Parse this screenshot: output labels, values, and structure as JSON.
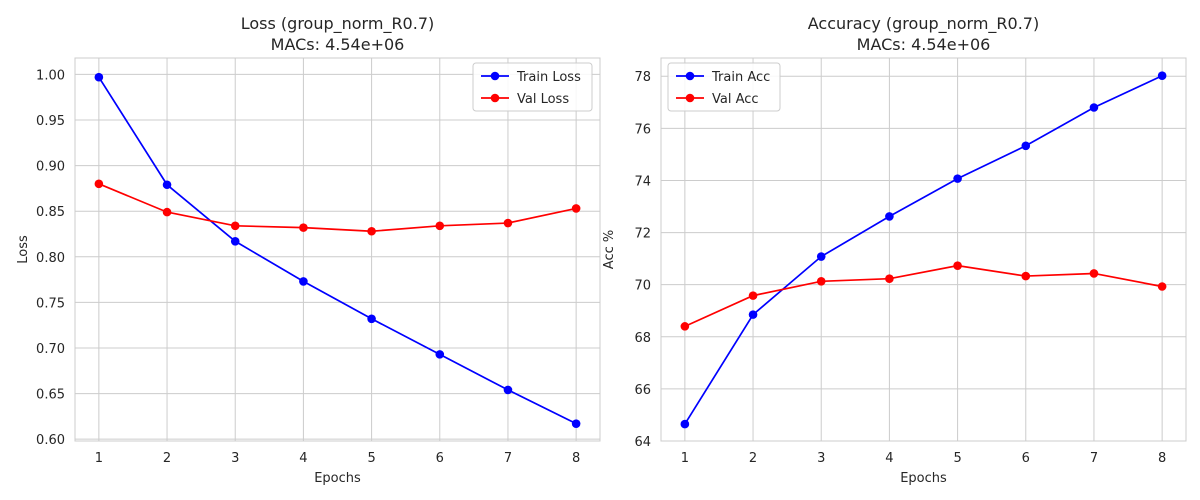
{
  "colors": {
    "train": "#0000ff",
    "val": "#ff0000",
    "grid": "#cccccc",
    "text": "#262626"
  },
  "chart_data": [
    {
      "type": "line",
      "title": "Loss (group_norm_R0.7)",
      "subtitle": "MACs: 4.54e+06",
      "xlabel": "Epochs",
      "ylabel": "Loss",
      "x": [
        1,
        2,
        3,
        4,
        5,
        6,
        7,
        8
      ],
      "ylim": [
        0.598,
        1.018
      ],
      "yticks": [
        0.6,
        0.65,
        0.7,
        0.75,
        0.8,
        0.85,
        0.9,
        0.95,
        1.0
      ],
      "ytick_labels": [
        "0.60",
        "0.65",
        "0.70",
        "0.75",
        "0.80",
        "0.85",
        "0.90",
        "0.95",
        "1.00"
      ],
      "xticks": [
        1,
        2,
        3,
        4,
        5,
        6,
        7,
        8
      ],
      "xtick_labels": [
        "1",
        "2",
        "3",
        "4",
        "5",
        "6",
        "7",
        "8"
      ],
      "grid": true,
      "legend": "upper-right",
      "series": [
        {
          "name": "Train Loss",
          "color": "#0000ff",
          "values": [
            0.997,
            0.879,
            0.817,
            0.773,
            0.732,
            0.693,
            0.654,
            0.617
          ]
        },
        {
          "name": "Val Loss",
          "color": "#ff0000",
          "values": [
            0.88,
            0.849,
            0.834,
            0.832,
            0.828,
            0.834,
            0.837,
            0.853
          ]
        }
      ]
    },
    {
      "type": "line",
      "title": "Accuracy (group_norm_R0.7)",
      "subtitle": "MACs: 4.54e+06",
      "xlabel": "Epochs",
      "ylabel": "Acc %",
      "x": [
        1,
        2,
        3,
        4,
        5,
        6,
        7,
        8
      ],
      "ylim": [
        64.0,
        78.7
      ],
      "yticks": [
        64,
        66,
        68,
        70,
        72,
        74,
        76,
        78
      ],
      "ytick_labels": [
        "64",
        "66",
        "68",
        "70",
        "72",
        "74",
        "76",
        "78"
      ],
      "xticks": [
        1,
        2,
        3,
        4,
        5,
        6,
        7,
        8
      ],
      "xtick_labels": [
        "1",
        "2",
        "3",
        "4",
        "5",
        "6",
        "7",
        "8"
      ],
      "grid": true,
      "legend": "upper-left",
      "series": [
        {
          "name": "Train Acc",
          "color": "#0000ff",
          "values": [
            64.65,
            68.85,
            71.08,
            72.62,
            74.07,
            75.33,
            76.8,
            78.02
          ]
        },
        {
          "name": "Val Acc",
          "color": "#ff0000",
          "values": [
            68.4,
            69.58,
            70.13,
            70.23,
            70.73,
            70.33,
            70.43,
            69.93
          ]
        }
      ]
    }
  ]
}
